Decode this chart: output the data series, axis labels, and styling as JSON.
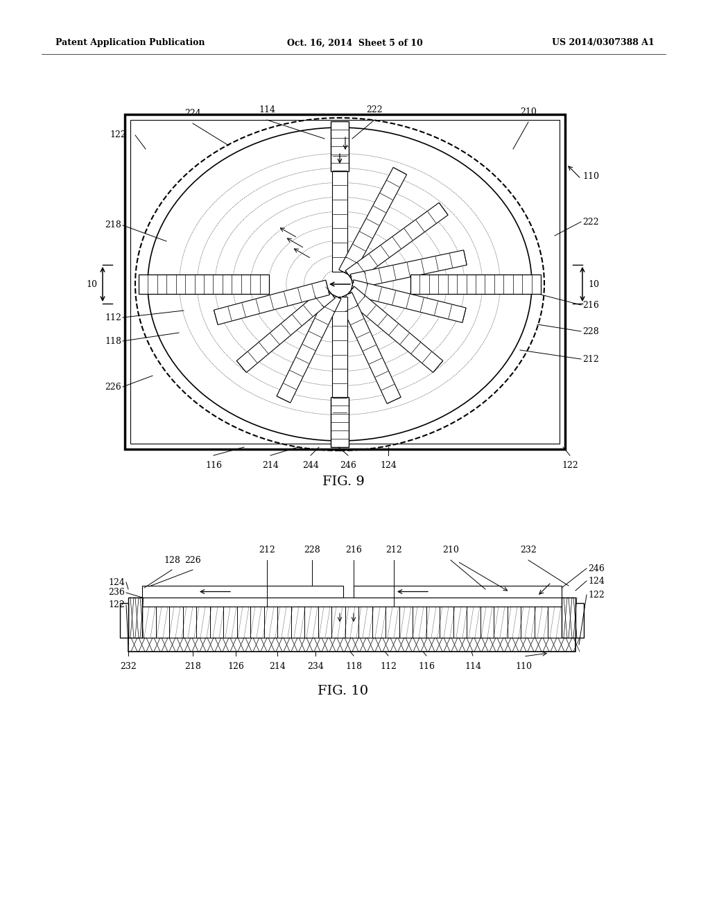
{
  "bg_color": "#ffffff",
  "header_left": "Patent Application Publication",
  "header_mid": "Oct. 16, 2014  Sheet 5 of 10",
  "header_right": "US 2014/0307388 A1",
  "fig9_title": "FIG. 9",
  "fig10_title": "FIG. 10"
}
